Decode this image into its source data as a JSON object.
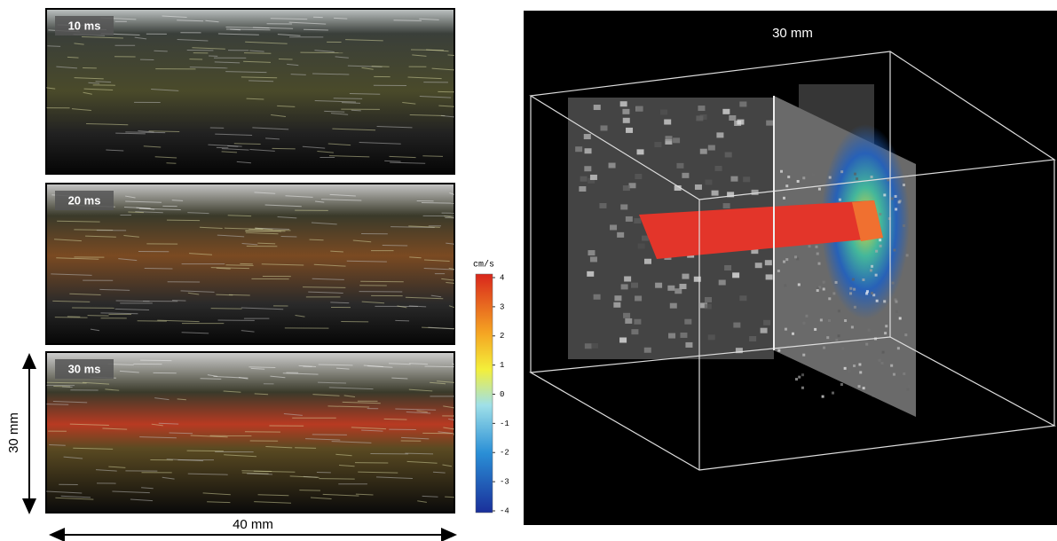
{
  "panels": [
    {
      "label": "10 ms"
    },
    {
      "label": "20 ms"
    },
    {
      "label": "30 ms"
    }
  ],
  "colorbar": {
    "unit": "cm/s",
    "lim": [
      -4,
      4
    ],
    "ticks": [
      4,
      3,
      2,
      1,
      0,
      -1,
      -2,
      -3,
      -4
    ]
  },
  "scale": {
    "vertical": "30 mm",
    "horizontal": "40 mm"
  },
  "volume": {
    "label": "30 mm"
  }
}
